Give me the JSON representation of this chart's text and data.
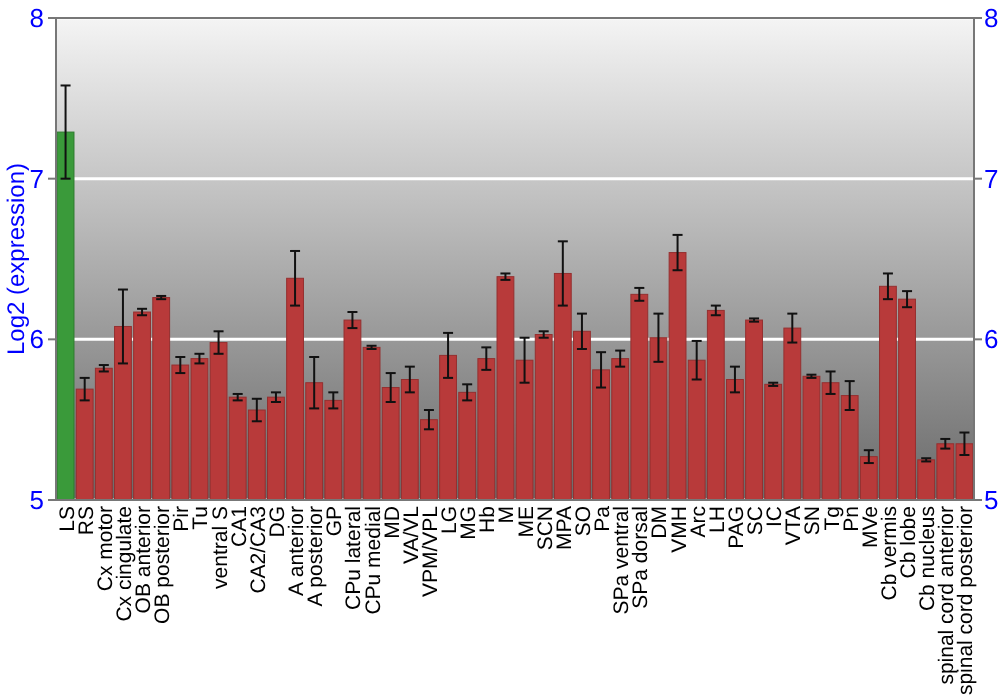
{
  "chart_data": {
    "type": "bar",
    "ylabel": "Log2 (expression)",
    "categories": [
      "LS",
      "RS",
      "Cx motor",
      "Cx cingulate",
      "OB anterior",
      "OB posterior",
      "Pir",
      "Tu",
      "ventral S",
      "CA1",
      "CA2/CA3",
      "DG",
      "A anterior",
      "A posterior",
      "GP",
      "CPu lateral",
      "CPu medial",
      "MD",
      "VA/VL",
      "VPM/VPL",
      "LG",
      "MG",
      "Hb",
      "M",
      "ME",
      "SCN",
      "MPA",
      "SO",
      "Pa",
      "SPa ventral",
      "SPa dorsal",
      "DM",
      "VMH",
      "Arc",
      "LH",
      "PAG",
      "SC",
      "IC",
      "VTA",
      "SN",
      "Tg",
      "Pn",
      "MVe",
      "Cb vermis",
      "Cb lobe",
      "Cb nucleus",
      "spinal cord anterior",
      "spinal cord posterior"
    ],
    "values": [
      7.29,
      5.69,
      5.82,
      6.08,
      6.17,
      6.26,
      5.84,
      5.88,
      5.98,
      5.64,
      5.56,
      5.64,
      6.38,
      5.73,
      5.62,
      6.12,
      5.95,
      5.7,
      5.75,
      5.5,
      5.9,
      5.67,
      5.88,
      6.39,
      5.87,
      6.03,
      6.41,
      6.05,
      5.81,
      5.88,
      6.28,
      6.01,
      6.54,
      5.87,
      6.18,
      5.75,
      6.12,
      5.72,
      6.07,
      5.77,
      5.73,
      5.65,
      5.27,
      6.33,
      6.25,
      5.25,
      5.35,
      5.35
    ],
    "errors": [
      0.29,
      0.07,
      0.02,
      0.23,
      0.02,
      0.01,
      0.05,
      0.03,
      0.07,
      0.02,
      0.07,
      0.03,
      0.17,
      0.16,
      0.05,
      0.05,
      0.01,
      0.09,
      0.08,
      0.06,
      0.14,
      0.05,
      0.07,
      0.02,
      0.14,
      0.02,
      0.2,
      0.11,
      0.11,
      0.05,
      0.04,
      0.15,
      0.11,
      0.12,
      0.03,
      0.08,
      0.01,
      0.01,
      0.09,
      0.01,
      0.07,
      0.09,
      0.04,
      0.08,
      0.05,
      0.01,
      0.03,
      0.07
    ],
    "colors": [
      "#3a9a3a",
      "#b83a3a",
      "#b83a3a",
      "#b83a3a",
      "#b83a3a",
      "#b83a3a",
      "#b83a3a",
      "#b83a3a",
      "#b83a3a",
      "#b83a3a",
      "#b83a3a",
      "#b83a3a",
      "#b83a3a",
      "#b83a3a",
      "#b83a3a",
      "#b83a3a",
      "#b83a3a",
      "#b83a3a",
      "#b83a3a",
      "#b83a3a",
      "#b83a3a",
      "#b83a3a",
      "#b83a3a",
      "#b83a3a",
      "#b83a3a",
      "#b83a3a",
      "#b83a3a",
      "#b83a3a",
      "#b83a3a",
      "#b83a3a",
      "#b83a3a",
      "#b83a3a",
      "#b83a3a",
      "#b83a3a",
      "#b83a3a",
      "#b83a3a",
      "#b83a3a",
      "#b83a3a",
      "#b83a3a",
      "#b83a3a",
      "#b83a3a",
      "#b83a3a",
      "#b83a3a",
      "#b83a3a",
      "#b83a3a",
      "#b83a3a",
      "#b83a3a",
      "#b83a3a"
    ],
    "ylim": [
      5,
      8
    ],
    "yticks": [
      5,
      6,
      7,
      8
    ],
    "y2lim": [
      5,
      8
    ],
    "y2ticks": [
      5,
      6,
      7,
      8
    ],
    "grid": "y"
  }
}
